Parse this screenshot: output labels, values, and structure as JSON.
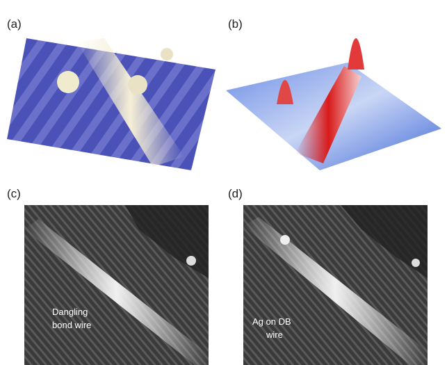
{
  "panels": [
    {
      "label": "(a)"
    },
    {
      "label": "(b)"
    },
    {
      "label": "(c)",
      "annotation": [
        "Dangling",
        "bond wire"
      ]
    },
    {
      "label": "(d)",
      "annotation": [
        "Ag on DB",
        "wire"
      ]
    }
  ]
}
